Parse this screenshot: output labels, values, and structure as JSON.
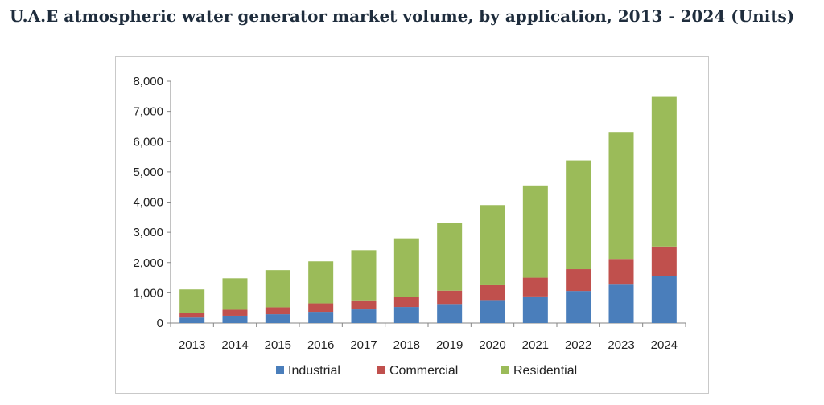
{
  "chart_data": {
    "type": "bar",
    "stacked": true,
    "title": "U.A.E atmospheric water generator market volume, by application, 2013 - 2024 (Units)",
    "categories": [
      "2013",
      "2014",
      "2015",
      "2016",
      "2017",
      "2018",
      "2019",
      "2020",
      "2021",
      "2022",
      "2023",
      "2024"
    ],
    "series": [
      {
        "name": "Industrial",
        "color": "#4a7ebb",
        "values": [
          180,
          240,
          290,
          370,
          450,
          530,
          630,
          760,
          880,
          1060,
          1270,
          1550
        ]
      },
      {
        "name": "Commercial",
        "color": "#c0504d",
        "values": [
          140,
          200,
          230,
          280,
          300,
          340,
          440,
          490,
          620,
          720,
          850,
          980
        ]
      },
      {
        "name": "Residential",
        "color": "#9bbb59",
        "values": [
          790,
          1040,
          1230,
          1390,
          1660,
          1930,
          2230,
          2650,
          3050,
          3600,
          4200,
          4950
        ]
      }
    ],
    "ylim": [
      0,
      8000
    ],
    "yticks": [
      0,
      1000,
      2000,
      3000,
      4000,
      5000,
      6000,
      7000,
      8000
    ],
    "ytick_labels": [
      "0",
      "1,000",
      "2,000",
      "3,000",
      "4,000",
      "5,000",
      "6,000",
      "7,000",
      "8,000"
    ],
    "xlabel": "",
    "ylabel": "",
    "grid": false,
    "legend_position": "bottom"
  }
}
